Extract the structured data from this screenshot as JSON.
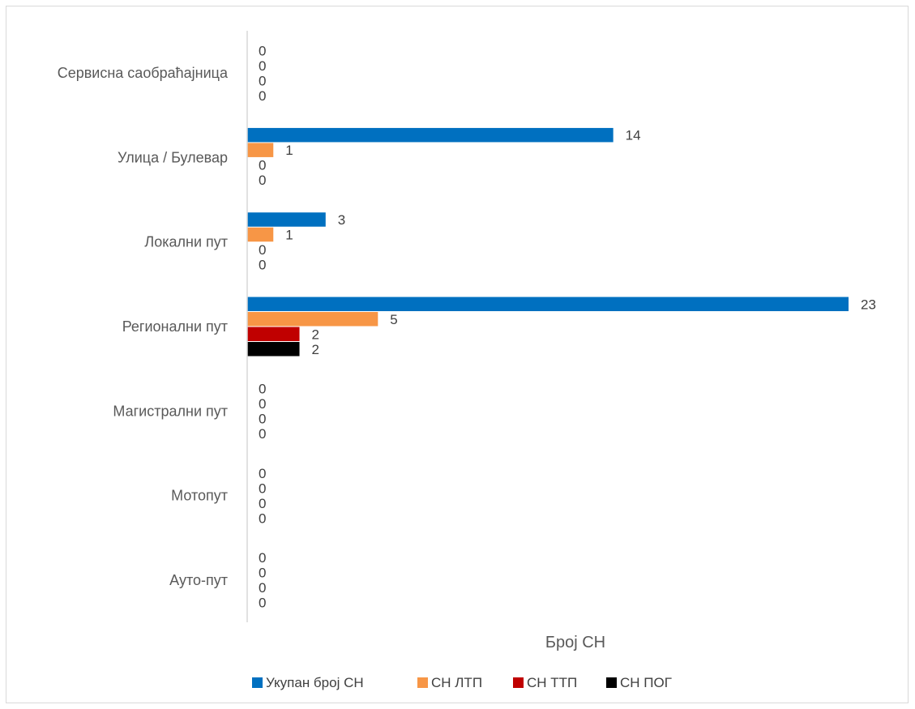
{
  "chart_data": {
    "type": "bar",
    "orientation": "horizontal",
    "categories": [
      "Сервисна саобраћајница",
      "Улица / Булевар",
      "Локални пут",
      "Регионални пут",
      "Магистрални пут",
      "Мотопут",
      "Ауто-пут"
    ],
    "series": [
      {
        "name": "Укупан број СН",
        "color": "#0070C0",
        "values": [
          0,
          14,
          3,
          23,
          0,
          0,
          0
        ]
      },
      {
        "name": "СН ЛТП",
        "color": "#F79646",
        "values": [
          0,
          1,
          1,
          5,
          0,
          0,
          0
        ]
      },
      {
        "name": "СН ТТП",
        "color": "#C00000",
        "values": [
          0,
          0,
          0,
          2,
          0,
          0,
          0
        ]
      },
      {
        "name": "СН ПОГ",
        "color": "#000000",
        "values": [
          0,
          0,
          0,
          2,
          0,
          0,
          0
        ]
      }
    ],
    "xlabel": "Број СН",
    "xlim": [
      0,
      23
    ],
    "grid": false,
    "legend_position": "bottom",
    "data_labels": true
  }
}
